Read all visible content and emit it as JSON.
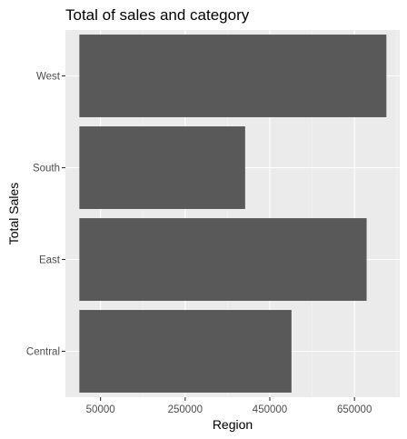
{
  "chart_data": {
    "type": "bar",
    "orientation": "horizontal",
    "title": "Total of sales and category",
    "xlabel": "Region",
    "ylabel": "Total Sales",
    "categories": [
      "Central",
      "East",
      "South",
      "West"
    ],
    "values": [
      501240,
      678781,
      391722,
      725458
    ],
    "xlim": [
      -33000,
      757000
    ],
    "xticks": [
      50000,
      250000,
      450000,
      650000
    ],
    "xtick_labels": [
      "50000",
      "250000",
      "450000",
      "650000"
    ],
    "grid": true,
    "legend": "none",
    "colors": {
      "bar": "#595959",
      "panel": "#ebebeb",
      "grid_major": "#ffffff",
      "grid_minor": "#f5f5f5"
    }
  }
}
